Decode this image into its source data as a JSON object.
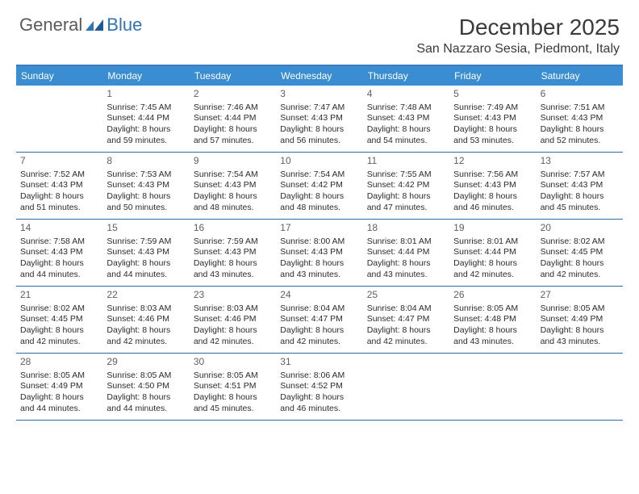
{
  "logo": {
    "general": "General",
    "blue": "Blue"
  },
  "title": "December 2025",
  "location": "San Nazzaro Sesia, Piedmont, Italy",
  "colors": {
    "header_band": "#3a8dd0",
    "band_border_top": "#3a7cbf",
    "week_divider": "#2e6da4",
    "logo_gray": "#5a5a5a",
    "logo_blue": "#2e75b6",
    "text": "#2b2b2b",
    "daynum": "#606060",
    "background": "#ffffff"
  },
  "typography": {
    "title_fontsize": 28,
    "location_fontsize": 16,
    "weekday_fontsize": 12,
    "daynum_fontsize": 12,
    "body_fontsize": 10.5
  },
  "weekdays": [
    "Sunday",
    "Monday",
    "Tuesday",
    "Wednesday",
    "Thursday",
    "Friday",
    "Saturday"
  ],
  "startOffset": 1,
  "days": [
    {
      "n": 1,
      "sunrise": "7:45 AM",
      "sunset": "4:44 PM",
      "daylight": "8 hours and 59 minutes."
    },
    {
      "n": 2,
      "sunrise": "7:46 AM",
      "sunset": "4:44 PM",
      "daylight": "8 hours and 57 minutes."
    },
    {
      "n": 3,
      "sunrise": "7:47 AM",
      "sunset": "4:43 PM",
      "daylight": "8 hours and 56 minutes."
    },
    {
      "n": 4,
      "sunrise": "7:48 AM",
      "sunset": "4:43 PM",
      "daylight": "8 hours and 54 minutes."
    },
    {
      "n": 5,
      "sunrise": "7:49 AM",
      "sunset": "4:43 PM",
      "daylight": "8 hours and 53 minutes."
    },
    {
      "n": 6,
      "sunrise": "7:51 AM",
      "sunset": "4:43 PM",
      "daylight": "8 hours and 52 minutes."
    },
    {
      "n": 7,
      "sunrise": "7:52 AM",
      "sunset": "4:43 PM",
      "daylight": "8 hours and 51 minutes."
    },
    {
      "n": 8,
      "sunrise": "7:53 AM",
      "sunset": "4:43 PM",
      "daylight": "8 hours and 50 minutes."
    },
    {
      "n": 9,
      "sunrise": "7:54 AM",
      "sunset": "4:43 PM",
      "daylight": "8 hours and 48 minutes."
    },
    {
      "n": 10,
      "sunrise": "7:54 AM",
      "sunset": "4:42 PM",
      "daylight": "8 hours and 48 minutes."
    },
    {
      "n": 11,
      "sunrise": "7:55 AM",
      "sunset": "4:42 PM",
      "daylight": "8 hours and 47 minutes."
    },
    {
      "n": 12,
      "sunrise": "7:56 AM",
      "sunset": "4:43 PM",
      "daylight": "8 hours and 46 minutes."
    },
    {
      "n": 13,
      "sunrise": "7:57 AM",
      "sunset": "4:43 PM",
      "daylight": "8 hours and 45 minutes."
    },
    {
      "n": 14,
      "sunrise": "7:58 AM",
      "sunset": "4:43 PM",
      "daylight": "8 hours and 44 minutes."
    },
    {
      "n": 15,
      "sunrise": "7:59 AM",
      "sunset": "4:43 PM",
      "daylight": "8 hours and 44 minutes."
    },
    {
      "n": 16,
      "sunrise": "7:59 AM",
      "sunset": "4:43 PM",
      "daylight": "8 hours and 43 minutes."
    },
    {
      "n": 17,
      "sunrise": "8:00 AM",
      "sunset": "4:43 PM",
      "daylight": "8 hours and 43 minutes."
    },
    {
      "n": 18,
      "sunrise": "8:01 AM",
      "sunset": "4:44 PM",
      "daylight": "8 hours and 43 minutes."
    },
    {
      "n": 19,
      "sunrise": "8:01 AM",
      "sunset": "4:44 PM",
      "daylight": "8 hours and 42 minutes."
    },
    {
      "n": 20,
      "sunrise": "8:02 AM",
      "sunset": "4:45 PM",
      "daylight": "8 hours and 42 minutes."
    },
    {
      "n": 21,
      "sunrise": "8:02 AM",
      "sunset": "4:45 PM",
      "daylight": "8 hours and 42 minutes."
    },
    {
      "n": 22,
      "sunrise": "8:03 AM",
      "sunset": "4:46 PM",
      "daylight": "8 hours and 42 minutes."
    },
    {
      "n": 23,
      "sunrise": "8:03 AM",
      "sunset": "4:46 PM",
      "daylight": "8 hours and 42 minutes."
    },
    {
      "n": 24,
      "sunrise": "8:04 AM",
      "sunset": "4:47 PM",
      "daylight": "8 hours and 42 minutes."
    },
    {
      "n": 25,
      "sunrise": "8:04 AM",
      "sunset": "4:47 PM",
      "daylight": "8 hours and 42 minutes."
    },
    {
      "n": 26,
      "sunrise": "8:05 AM",
      "sunset": "4:48 PM",
      "daylight": "8 hours and 43 minutes."
    },
    {
      "n": 27,
      "sunrise": "8:05 AM",
      "sunset": "4:49 PM",
      "daylight": "8 hours and 43 minutes."
    },
    {
      "n": 28,
      "sunrise": "8:05 AM",
      "sunset": "4:49 PM",
      "daylight": "8 hours and 44 minutes."
    },
    {
      "n": 29,
      "sunrise": "8:05 AM",
      "sunset": "4:50 PM",
      "daylight": "8 hours and 44 minutes."
    },
    {
      "n": 30,
      "sunrise": "8:05 AM",
      "sunset": "4:51 PM",
      "daylight": "8 hours and 45 minutes."
    },
    {
      "n": 31,
      "sunrise": "8:06 AM",
      "sunset": "4:52 PM",
      "daylight": "8 hours and 46 minutes."
    }
  ],
  "labels": {
    "sunrise": "Sunrise:",
    "sunset": "Sunset:",
    "daylight": "Daylight:"
  }
}
